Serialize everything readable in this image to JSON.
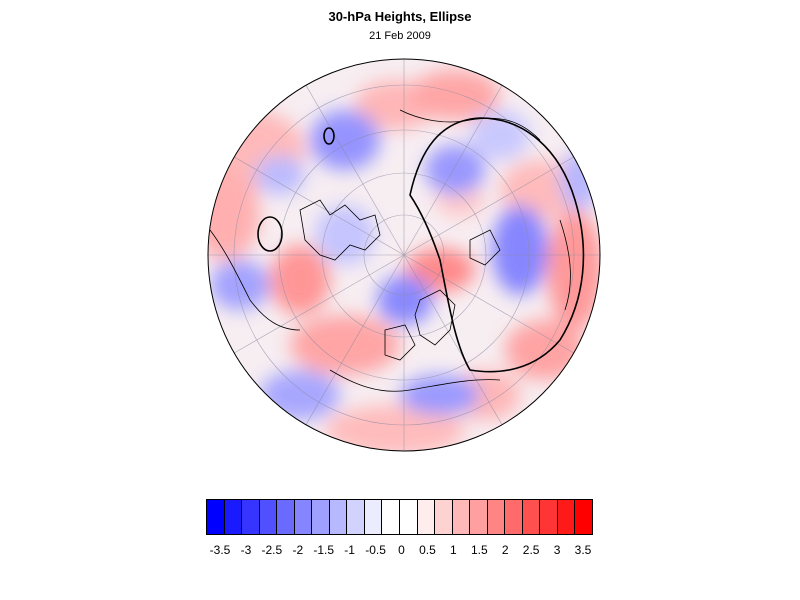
{
  "title": "30-hPa Heights, Ellipse",
  "subtitle": "21 Feb 2009",
  "map": {
    "projection": "polar stereographic (north pole centered)",
    "field": "30-hPa height anomaly",
    "contour_colors": {
      "strong_positive": "#ff3030",
      "positive": "#ffb0b0",
      "weak_positive": "#fde8e8",
      "weak_negative": "#e8e8fc",
      "negative": "#a0a0ff",
      "strong_negative": "#4a4aff"
    },
    "ellipse_outline_color": "#000000"
  },
  "colorbar": {
    "colors": [
      "#0000ff",
      "#1a1aff",
      "#3535ff",
      "#5050ff",
      "#6a6aff",
      "#8585ff",
      "#9f9fff",
      "#b8b8ff",
      "#d2d2ff",
      "#ececff",
      "#ffffff",
      "#ffffff",
      "#ffecec",
      "#ffd2d2",
      "#ffb8b8",
      "#ff9f9f",
      "#ff8585",
      "#ff6a6a",
      "#ff5050",
      "#ff3535",
      "#ff1a1a",
      "#ff0000"
    ],
    "tick_labels": [
      "-3.5",
      "-3",
      "-2.5",
      "-2",
      "-1.5",
      "-1",
      "-0.5",
      "0",
      "0.5",
      "1",
      "1.5",
      "2",
      "2.5",
      "3",
      "3.5"
    ]
  }
}
